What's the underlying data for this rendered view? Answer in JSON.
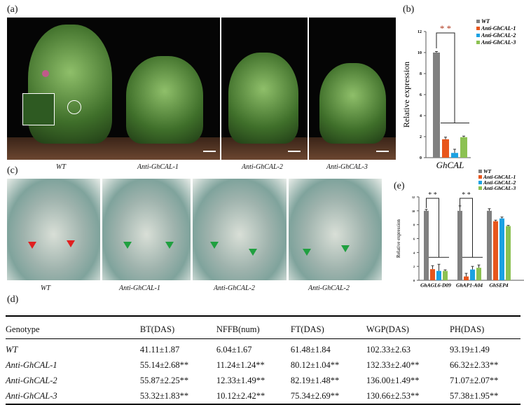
{
  "panels": {
    "a": "(a)",
    "b": "(b)",
    "c": "(c)",
    "d": "(d)",
    "e": "(e)"
  },
  "panel_a_labels": [
    "WT",
    "Anti-GhCAL-1",
    "Anti-GhCAL-2",
    "Anti-GhCAL-3"
  ],
  "panel_c_labels": [
    "WT",
    "Anti-GhCAL-1",
    "Anti-GhCAL-2",
    "Anti-GhCAL-2"
  ],
  "colors": {
    "WT": "#808080",
    "Anti-GhCAL-1": "#e8561c",
    "Anti-GhCAL-2": "#1ba1e2",
    "Anti-GhCAL-3": "#8cc152"
  },
  "chart_data": [
    {
      "type": "bar",
      "panel": "b",
      "categories": [
        "GhCAL"
      ],
      "ylabel": "Relative expression",
      "ylim": [
        0,
        12
      ],
      "yticks": [
        0,
        2,
        4,
        6,
        8,
        10,
        12
      ],
      "series": [
        {
          "name": "WT",
          "values": [
            10.0
          ],
          "err": [
            0.1
          ]
        },
        {
          "name": "Anti-GhCAL-1",
          "values": [
            1.75
          ],
          "err": [
            0.2
          ]
        },
        {
          "name": "Anti-GhCAL-2",
          "values": [
            0.45
          ],
          "err": [
            0.35
          ]
        },
        {
          "name": "Anti-GhCAL-3",
          "values": [
            1.95
          ],
          "err": [
            0.1
          ]
        }
      ],
      "annotation": "* *",
      "legend": "top-right"
    },
    {
      "type": "bar",
      "panel": "e",
      "categories": [
        "GhAGL6-D09",
        "GhAP1-A04",
        "GhSEP4"
      ],
      "ylabel": "Relative expression",
      "ylim": [
        0,
        12
      ],
      "yticks": [
        0,
        2,
        4,
        6,
        8,
        10,
        12
      ],
      "series": [
        {
          "name": "WT",
          "values": [
            10.0,
            10.0,
            10.0
          ],
          "err": [
            0.2,
            0.7,
            0.3
          ]
        },
        {
          "name": "Anti-GhCAL-1",
          "values": [
            1.6,
            0.55,
            8.5
          ],
          "err": [
            0.5,
            0.45,
            0.15
          ]
        },
        {
          "name": "Anti-GhCAL-2",
          "values": [
            1.35,
            1.55,
            8.9
          ],
          "err": [
            0.95,
            0.45,
            0.2
          ]
        },
        {
          "name": "Anti-GhCAL-3",
          "values": [
            1.35,
            1.8,
            7.8
          ],
          "err": [
            0.15,
            0.4,
            0.1
          ]
        }
      ],
      "annotation": "* *",
      "legend": "top-right"
    }
  ],
  "table": {
    "headers": [
      "Genotype",
      "BT(DAS)",
      "NFFB(num)",
      "FT(DAS)",
      "WGP(DAS)",
      "PH(DAS)"
    ],
    "rows": [
      [
        "WT",
        "41.11±1.87",
        "6.04±1.67",
        "61.48±1.84",
        "102.33±2.63",
        "93.19±1.49"
      ],
      [
        "Anti-GhCAL-1",
        "55.14±2.68**",
        "11.24±1.24**",
        "80.12±1.04**",
        "132.33±2.40**",
        "66.32±2.33**"
      ],
      [
        "Anti-GhCAL-2",
        "55.87±2.25**",
        "12.33±1.49**",
        "82.19±1.48**",
        "136.00±1.49**",
        "71.07±2.07**"
      ],
      [
        "Anti-GhCAL-3",
        "53.32±1.83**",
        "10.12±2.42**",
        "75.34±2.69**",
        "130.66±2.53**",
        "57.38±1.95**"
      ]
    ]
  }
}
